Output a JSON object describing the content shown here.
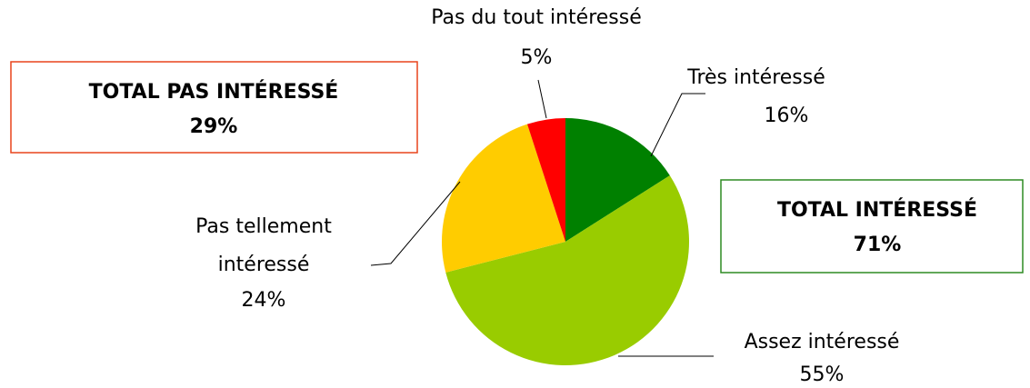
{
  "chart_data": {
    "type": "pie",
    "categories": [
      "Très intéressé",
      "Assez intéressé",
      "Pas tellement intéressé",
      "Pas du tout intéressé"
    ],
    "values": [
      16,
      55,
      24,
      5
    ],
    "value_labels": [
      "16%",
      "55%",
      "24%",
      "5%"
    ],
    "colors": [
      "#008000",
      "#99cc00",
      "#ffcc00",
      "#ff0000"
    ],
    "annotations": [
      {
        "text": "TOTAL PAS INTÉRESSÉ",
        "label": "29%",
        "color": "#e8441c"
      },
      {
        "text": "TOTAL INTÉRESSÉ",
        "label": "71%",
        "color": "#2e8b22"
      }
    ]
  }
}
